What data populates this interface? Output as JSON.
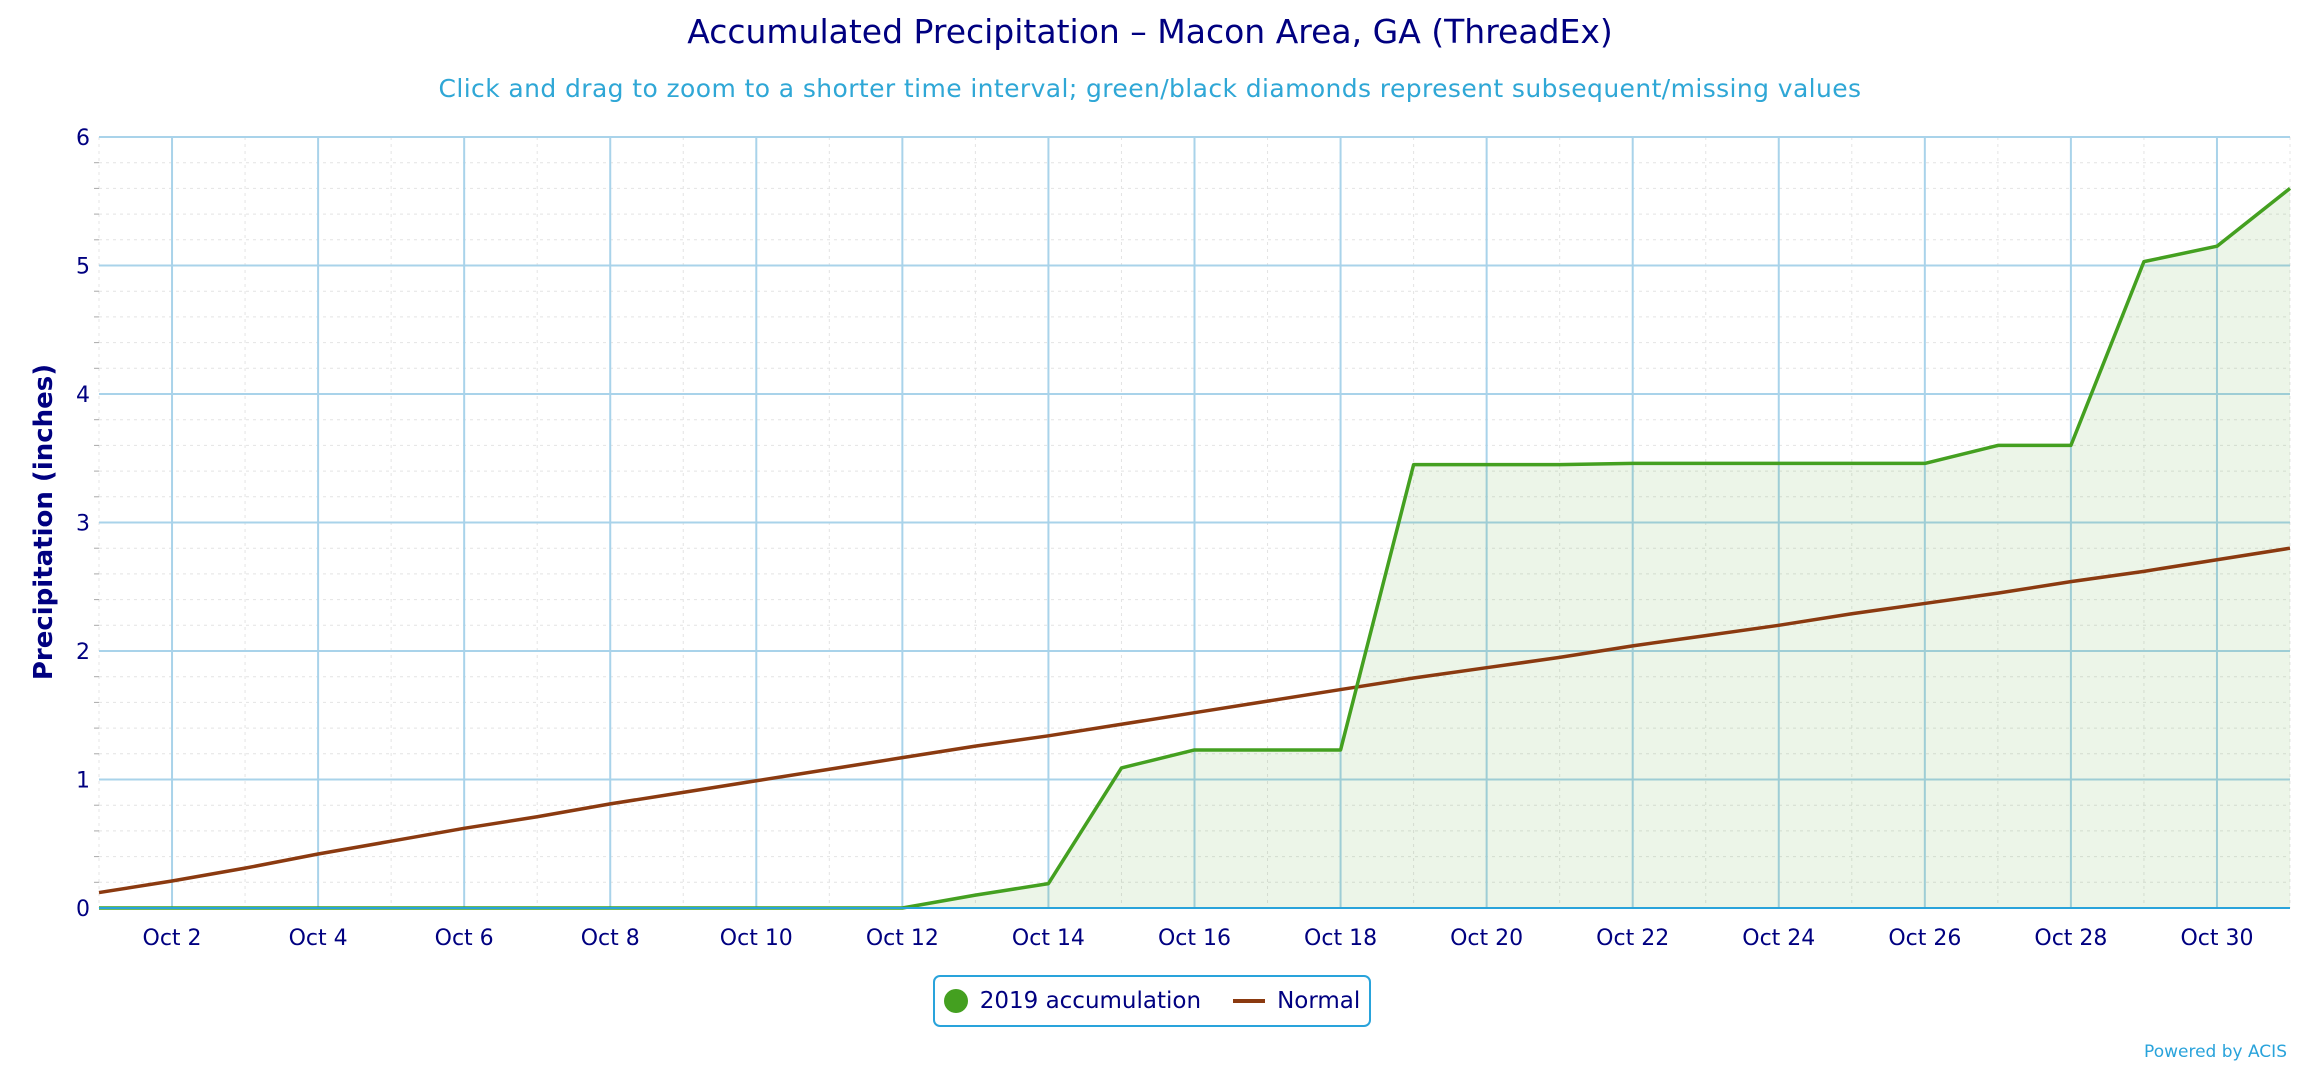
{
  "page": {
    "title": "Accumulated Precipitation – Macon Area, GA (ThreadEx)",
    "subtitle": "Click and drag to zoom to a shorter time interval; green/black diamonds represent subsequent/missing values",
    "credit": "Powered by ACIS"
  },
  "chart_data": {
    "type": "line",
    "title": "Accumulated Precipitation – Macon Area, GA (ThreadEx)",
    "subtitle": "Click and drag to zoom to a shorter time interval; green/black diamonds represent subsequent/missing values",
    "xlabel": "",
    "ylabel": "Precipitation (inches)",
    "x_range": [
      "Oct 1",
      "Oct 31"
    ],
    "ylim": [
      0,
      6
    ],
    "y_ticks": [
      0,
      1,
      2,
      3,
      4,
      5,
      6
    ],
    "x_tick_labels": [
      "Oct 2",
      "Oct 4",
      "Oct 6",
      "Oct 8",
      "Oct 10",
      "Oct 12",
      "Oct 14",
      "Oct 16",
      "Oct 18",
      "Oct 20",
      "Oct 22",
      "Oct 24",
      "Oct 26",
      "Oct 28",
      "Oct 30"
    ],
    "x": [
      "Oct 1",
      "Oct 2",
      "Oct 3",
      "Oct 4",
      "Oct 5",
      "Oct 6",
      "Oct 7",
      "Oct 8",
      "Oct 9",
      "Oct 10",
      "Oct 11",
      "Oct 12",
      "Oct 13",
      "Oct 14",
      "Oct 15",
      "Oct 16",
      "Oct 17",
      "Oct 18",
      "Oct 19",
      "Oct 20",
      "Oct 21",
      "Oct 22",
      "Oct 23",
      "Oct 24",
      "Oct 25",
      "Oct 26",
      "Oct 27",
      "Oct 28",
      "Oct 29",
      "Oct 30",
      "Oct 31"
    ],
    "grid": true,
    "legend_position": "bottom-center",
    "series": [
      {
        "name": "2019 accumulation",
        "color": "#44a020",
        "fill": true,
        "values": [
          0,
          0,
          0,
          0,
          0,
          0,
          0,
          0,
          0,
          0,
          0,
          0,
          0.1,
          0.19,
          1.09,
          1.23,
          1.23,
          1.23,
          3.45,
          3.45,
          3.45,
          3.46,
          3.46,
          3.46,
          3.46,
          3.46,
          3.6,
          3.6,
          5.03,
          5.15,
          5.6
        ]
      },
      {
        "name": "Normal",
        "color": "#8b3a10",
        "fill": false,
        "values": [
          0.12,
          0.21,
          0.31,
          0.42,
          0.52,
          0.62,
          0.71,
          0.81,
          0.9,
          0.99,
          1.08,
          1.17,
          1.26,
          1.34,
          1.43,
          1.52,
          1.61,
          1.7,
          1.79,
          1.87,
          1.95,
          2.04,
          2.12,
          2.2,
          2.29,
          2.37,
          2.45,
          2.54,
          2.62,
          2.71,
          2.8
        ]
      }
    ]
  }
}
